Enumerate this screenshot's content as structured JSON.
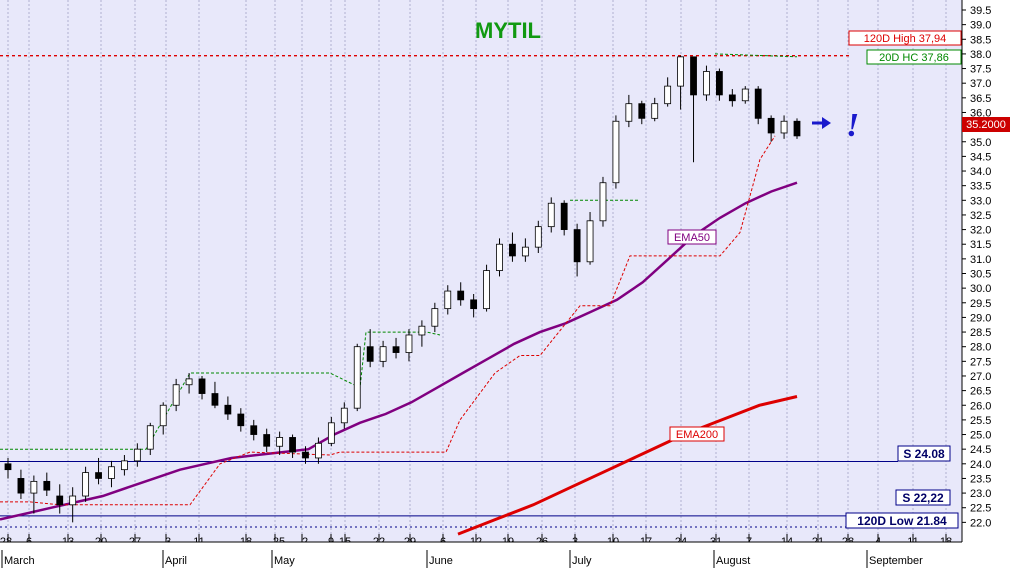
{
  "chart_data": {
    "type": "candlestick",
    "title": "MYTIL",
    "ylim": [
      21.5,
      39.5
    ],
    "y_ticks": [
      "22.0",
      "22.5",
      "23.0",
      "23.5",
      "24.0",
      "24.5",
      "25.0",
      "25.5",
      "26.0",
      "26.5",
      "27.0",
      "27.5",
      "28.0",
      "28.5",
      "29.0",
      "29.5",
      "30.0",
      "30.5",
      "31.0",
      "31.5",
      "32.0",
      "32.5",
      "33.0",
      "33.5",
      "34.0",
      "34.5",
      "35.0",
      "35.5",
      "36.0",
      "36.5",
      "37.0",
      "37.5",
      "38.0",
      "38.5",
      "39.0",
      "39.5"
    ],
    "date_ticks": [
      "28",
      "6",
      "13",
      "20",
      "27",
      "3",
      "11",
      "18",
      "25",
      "2",
      "9",
      "15",
      "22",
      "29",
      "6",
      "12",
      "19",
      "26",
      "3",
      "10",
      "17",
      "24",
      "31",
      "7",
      "14",
      "21",
      "28",
      "4",
      "11",
      "18"
    ],
    "months": [
      "March",
      "April",
      "May",
      "June",
      "July",
      "August",
      "September"
    ],
    "current_price": "35.2000",
    "levels": {
      "high_120d": {
        "label": "120D High 37,94",
        "value": 37.94,
        "color": "#dd0000"
      },
      "hc_20d": {
        "label": "20D HC 37,86",
        "color": "#008800"
      },
      "low_120d": {
        "label": "120D Low 21.84",
        "value": 21.84
      },
      "s1": {
        "label": "S 24.08",
        "value": 24.08
      },
      "s2": {
        "label": "S 22,22",
        "value": 22.22
      }
    },
    "ema50": {
      "label": "EMA50",
      "color": "#800080",
      "values": [
        22.1,
        22.3,
        22.5,
        22.7,
        22.9,
        23.2,
        23.5,
        23.8,
        24.0,
        24.2,
        24.3,
        24.4,
        24.5,
        25.0,
        25.4,
        25.7,
        26.1,
        26.6,
        27.1,
        27.6,
        28.1,
        28.5,
        28.8,
        29.2,
        29.6,
        30.2,
        31.0,
        31.8,
        32.4,
        32.9,
        33.3,
        33.6
      ]
    },
    "ema200": {
      "label": "EMA200",
      "color": "#dd0000",
      "values": [
        21.6,
        22.1,
        22.6,
        23.2,
        23.8,
        24.4,
        25.0,
        25.5,
        26.0,
        26.3
      ]
    },
    "candles": [
      {
        "o": 24.0,
        "h": 24.2,
        "l": 23.5,
        "c": 23.8
      },
      {
        "o": 23.5,
        "h": 23.8,
        "l": 22.8,
        "c": 23.0
      },
      {
        "o": 23.0,
        "h": 23.6,
        "l": 22.3,
        "c": 23.4
      },
      {
        "o": 23.4,
        "h": 23.7,
        "l": 22.9,
        "c": 23.1
      },
      {
        "o": 22.9,
        "h": 23.3,
        "l": 22.3,
        "c": 22.6
      },
      {
        "o": 22.6,
        "h": 23.2,
        "l": 22.0,
        "c": 22.9
      },
      {
        "o": 22.9,
        "h": 23.9,
        "l": 22.7,
        "c": 23.7
      },
      {
        "o": 23.7,
        "h": 24.2,
        "l": 23.3,
        "c": 23.5
      },
      {
        "o": 23.5,
        "h": 24.1,
        "l": 23.2,
        "c": 23.9
      },
      {
        "o": 23.8,
        "h": 24.3,
        "l": 23.6,
        "c": 24.1
      },
      {
        "o": 24.1,
        "h": 24.7,
        "l": 23.9,
        "c": 24.5
      },
      {
        "o": 24.5,
        "h": 25.4,
        "l": 24.3,
        "c": 25.3
      },
      {
        "o": 25.3,
        "h": 26.1,
        "l": 25.0,
        "c": 26.0
      },
      {
        "o": 26.0,
        "h": 26.9,
        "l": 25.8,
        "c": 26.7
      },
      {
        "o": 26.7,
        "h": 27.1,
        "l": 26.4,
        "c": 26.9
      },
      {
        "o": 26.9,
        "h": 27.0,
        "l": 26.2,
        "c": 26.4
      },
      {
        "o": 26.4,
        "h": 26.8,
        "l": 25.9,
        "c": 26.0
      },
      {
        "o": 26.0,
        "h": 26.3,
        "l": 25.5,
        "c": 25.7
      },
      {
        "o": 25.7,
        "h": 25.9,
        "l": 25.1,
        "c": 25.3
      },
      {
        "o": 25.3,
        "h": 25.5,
        "l": 24.8,
        "c": 25.0
      },
      {
        "o": 25.0,
        "h": 25.2,
        "l": 24.4,
        "c": 24.6
      },
      {
        "o": 24.6,
        "h": 25.1,
        "l": 24.3,
        "c": 24.9
      },
      {
        "o": 24.9,
        "h": 25.0,
        "l": 24.2,
        "c": 24.4
      },
      {
        "o": 24.4,
        "h": 24.6,
        "l": 24.0,
        "c": 24.2
      },
      {
        "o": 24.2,
        "h": 24.9,
        "l": 24.0,
        "c": 24.7
      },
      {
        "o": 24.7,
        "h": 25.6,
        "l": 24.6,
        "c": 25.4
      },
      {
        "o": 25.4,
        "h": 26.1,
        "l": 25.2,
        "c": 25.9
      },
      {
        "o": 25.9,
        "h": 28.1,
        "l": 25.8,
        "c": 28.0
      },
      {
        "o": 28.0,
        "h": 28.6,
        "l": 27.3,
        "c": 27.5
      },
      {
        "o": 27.5,
        "h": 28.2,
        "l": 27.3,
        "c": 28.0
      },
      {
        "o": 28.0,
        "h": 28.3,
        "l": 27.6,
        "c": 27.8
      },
      {
        "o": 27.8,
        "h": 28.6,
        "l": 27.5,
        "c": 28.4
      },
      {
        "o": 28.4,
        "h": 28.9,
        "l": 28.0,
        "c": 28.7
      },
      {
        "o": 28.7,
        "h": 29.5,
        "l": 28.5,
        "c": 29.3
      },
      {
        "o": 29.3,
        "h": 30.1,
        "l": 29.1,
        "c": 29.9
      },
      {
        "o": 29.9,
        "h": 30.2,
        "l": 29.4,
        "c": 29.6
      },
      {
        "o": 29.6,
        "h": 29.8,
        "l": 29.0,
        "c": 29.3
      },
      {
        "o": 29.3,
        "h": 30.8,
        "l": 29.2,
        "c": 30.6
      },
      {
        "o": 30.6,
        "h": 31.7,
        "l": 30.4,
        "c": 31.5
      },
      {
        "o": 31.5,
        "h": 31.9,
        "l": 30.9,
        "c": 31.1
      },
      {
        "o": 31.1,
        "h": 31.7,
        "l": 30.9,
        "c": 31.4
      },
      {
        "o": 31.4,
        "h": 32.3,
        "l": 31.2,
        "c": 32.1
      },
      {
        "o": 32.1,
        "h": 33.1,
        "l": 31.9,
        "c": 32.9
      },
      {
        "o": 32.9,
        "h": 33.0,
        "l": 31.8,
        "c": 32.0
      },
      {
        "o": 32.0,
        "h": 32.2,
        "l": 30.4,
        "c": 30.9
      },
      {
        "o": 30.9,
        "h": 32.6,
        "l": 30.8,
        "c": 32.3
      },
      {
        "o": 32.3,
        "h": 33.8,
        "l": 32.1,
        "c": 33.6
      },
      {
        "o": 33.6,
        "h": 35.9,
        "l": 33.4,
        "c": 35.7
      },
      {
        "o": 35.7,
        "h": 36.6,
        "l": 35.5,
        "c": 36.3
      },
      {
        "o": 36.3,
        "h": 36.4,
        "l": 35.6,
        "c": 35.8
      },
      {
        "o": 35.8,
        "h": 36.5,
        "l": 35.7,
        "c": 36.3
      },
      {
        "o": 36.3,
        "h": 37.2,
        "l": 36.2,
        "c": 36.9
      },
      {
        "o": 36.9,
        "h": 37.94,
        "l": 36.1,
        "c": 37.9
      },
      {
        "o": 37.9,
        "h": 37.9,
        "l": 34.3,
        "c": 36.6
      },
      {
        "o": 36.6,
        "h": 37.6,
        "l": 36.4,
        "c": 37.4
      },
      {
        "o": 37.4,
        "h": 37.5,
        "l": 36.4,
        "c": 36.6
      },
      {
        "o": 36.6,
        "h": 36.8,
        "l": 36.2,
        "c": 36.4
      },
      {
        "o": 36.4,
        "h": 36.9,
        "l": 36.3,
        "c": 36.8
      },
      {
        "o": 36.8,
        "h": 36.9,
        "l": 35.6,
        "c": 35.8
      },
      {
        "o": 35.8,
        "h": 35.9,
        "l": 35.0,
        "c": 35.3
      },
      {
        "o": 35.3,
        "h": 35.9,
        "l": 35.1,
        "c": 35.7
      },
      {
        "o": 35.7,
        "h": 35.8,
        "l": 35.1,
        "c": 35.2
      }
    ]
  }
}
